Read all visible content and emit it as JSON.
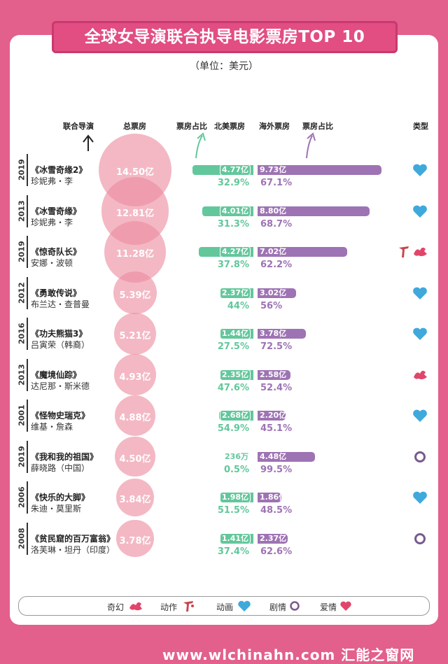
{
  "title": "全球女导演联合执导电影票房TOP 10",
  "unit": "（单位：美元）",
  "headers": {
    "director": "联合导演",
    "total": "总票房",
    "na_share": "票房占比",
    "na_box": "北美票房",
    "os_box": "海外票房",
    "os_share": "票房占比",
    "type": "类型"
  },
  "chart_data": {
    "type": "bar",
    "categories": [
      "《冰雪奇缘2》",
      "《冰雪奇缘》",
      "《惊奇队长》",
      "《勇敢传说》",
      "《功夫熊猫3》",
      "《魔境仙踪》",
      "《怪物史瑞克》",
      "《我和我的祖国》",
      "《快乐的大脚》",
      "《贫民窟的百万富翁》"
    ],
    "unit": "亿美元",
    "rows": [
      {
        "year": "2019",
        "film": "《冰雪奇缘2》",
        "director": "珍妮弗・李",
        "total": 14.5,
        "total_label": "14.50亿",
        "na": 4.77,
        "na_label": "4.77亿",
        "na_pct": "32.9%",
        "os": 9.73,
        "os_label": "9.73亿",
        "os_pct": "67.1%",
        "genre": "animation"
      },
      {
        "year": "2013",
        "film": "《冰雪奇缘》",
        "director": "珍妮弗・李",
        "total": 12.81,
        "total_label": "12.81亿",
        "na": 4.01,
        "na_label": "4.01亿",
        "na_pct": "31.3%",
        "os": 8.8,
        "os_label": "8.80亿",
        "os_pct": "68.7%",
        "genre": "animation"
      },
      {
        "year": "2019",
        "film": "《惊奇队长》",
        "director": "安娜・波顿",
        "total": 11.28,
        "total_label": "11.28亿",
        "na": 4.27,
        "na_label": "4.27亿",
        "na_pct": "37.8%",
        "os": 7.02,
        "os_label": "7.02亿",
        "os_pct": "62.2%",
        "genre": "action-fantasy"
      },
      {
        "year": "2012",
        "film": "《勇敢传说》",
        "director": "布兰达・查普曼",
        "total": 5.39,
        "total_label": "5.39亿",
        "na": 2.37,
        "na_label": "2.37亿",
        "na_pct": "44%",
        "os": 3.02,
        "os_label": "3.02亿",
        "os_pct": "56%",
        "genre": "animation"
      },
      {
        "year": "2016",
        "film": "《功夫熊猫3》",
        "director": "吕寅荣（韩裔）",
        "total": 5.21,
        "total_label": "5.21亿",
        "na": 1.44,
        "na_label": "1.44亿",
        "na_pct": "27.5%",
        "os": 3.78,
        "os_label": "3.78亿",
        "os_pct": "72.5%",
        "genre": "animation"
      },
      {
        "year": "2013",
        "film": "《魔境仙踪》",
        "director": "达尼那・斯米德",
        "total": 4.93,
        "total_label": "4.93亿",
        "na": 2.35,
        "na_label": "2.35亿",
        "na_pct": "47.6%",
        "os": 2.58,
        "os_label": "2.58亿",
        "os_pct": "52.4%",
        "genre": "fantasy"
      },
      {
        "year": "2001",
        "film": "《怪物史瑞克》",
        "director": "维基・詹森",
        "total": 4.88,
        "total_label": "4.88亿",
        "na": 2.68,
        "na_label": "2.68亿",
        "na_pct": "54.9%",
        "os": 2.2,
        "os_label": "2.20亿",
        "os_pct": "45.1%",
        "genre": "animation"
      },
      {
        "year": "2019",
        "film": "《我和我的祖国》",
        "director": "薛晓路（中国）",
        "total": 4.5,
        "total_label": "4.50亿",
        "na": 0.0236,
        "na_label": "236万",
        "na_pct": "0.5%",
        "os": 4.48,
        "os_label": "4.48亿",
        "os_pct": "99.5%",
        "genre": "drama"
      },
      {
        "year": "2006",
        "film": "《快乐的大脚》",
        "director": "朱迪・莫里斯",
        "total": 3.84,
        "total_label": "3.84亿",
        "na": 1.98,
        "na_label": "1.98亿",
        "na_pct": "51.5%",
        "os": 1.86,
        "os_label": "1.86亿",
        "os_pct": "48.5%",
        "genre": "animation"
      },
      {
        "year": "2008",
        "film": "《贫民窟的百万富翁》",
        "director": "洛芙琳・坦丹（印度）",
        "total": 3.78,
        "total_label": "3.78亿",
        "na": 1.41,
        "na_label": "1.41亿",
        "na_pct": "37.4%",
        "os": 2.37,
        "os_label": "2.37亿",
        "os_pct": "62.6%",
        "genre": "drama"
      }
    ]
  },
  "colors": {
    "background": "#e35f8c",
    "na": "#63c79c",
    "os": "#9e73b4",
    "circle": "#eb8ca0",
    "animation": "#3fa9dc",
    "fantasy": "#e2456a",
    "action": "#c8464e",
    "drama": "#7a5a8c",
    "romance": "#e2456a"
  },
  "legend": [
    {
      "label": "奇幻",
      "icon": "dragon-icon"
    },
    {
      "label": "动作",
      "icon": "kick-icon"
    },
    {
      "label": "动画",
      "icon": "heart-blue-icon"
    },
    {
      "label": "剧情",
      "icon": "ring-icon"
    },
    {
      "label": "爱情",
      "icon": "heart-red-icon"
    }
  ],
  "footer": "www.wlchinahn.com 汇能之窗网"
}
